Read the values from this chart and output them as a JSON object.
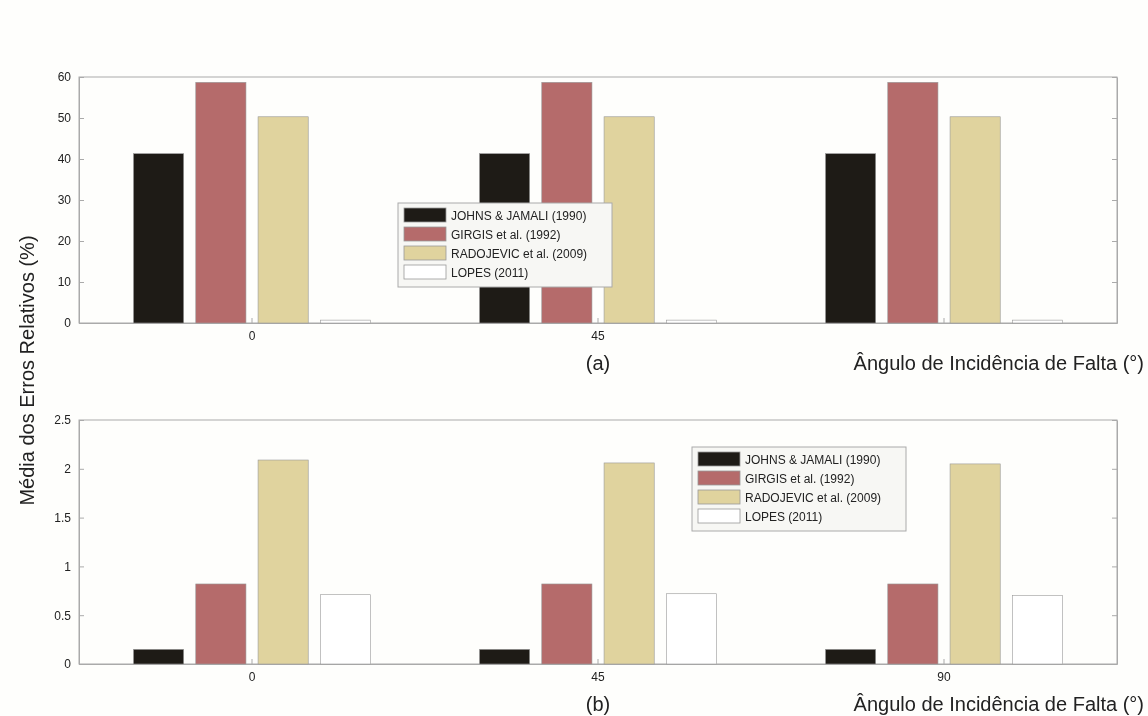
{
  "chart_data": [
    {
      "type": "bar",
      "categories": [
        "0",
        "45",
        null
      ],
      "xlabel": "Ângulo de Incidência de Falta (°)",
      "ylabel": "Média dos Erros Relativos (%)",
      "ylim": [
        0,
        60
      ],
      "yticks": [
        0,
        10,
        20,
        30,
        40,
        50,
        60
      ],
      "legend": "center",
      "annotations": [
        "(a)"
      ],
      "series": [
        {
          "name": "JOHNS & JAMALI (1990)",
          "color": "#1e1b16",
          "values": [
            41.3,
            41.3,
            41.3
          ]
        },
        {
          "name": "GIRGIS et al. (1992)",
          "color": "#b56b6b",
          "values": [
            58.7,
            58.7,
            58.7
          ]
        },
        {
          "name": "RADOJEVIC et al. (2009)",
          "color": "#e0d39e",
          "values": [
            50.3,
            50.3,
            50.3
          ]
        },
        {
          "name": "LOPES (2011)",
          "color": "#ffffff",
          "values": [
            0.7,
            0.7,
            0.7
          ]
        }
      ]
    },
    {
      "type": "bar",
      "categories": [
        "0",
        "45",
        "90"
      ],
      "xlabel": "Ângulo de Incidência de Falta (°)",
      "ylim": [
        0,
        2.5
      ],
      "yticks": [
        0,
        0.5,
        1,
        1.5,
        2,
        2.5
      ],
      "legend": "top right",
      "annotations": [
        "(b)"
      ],
      "series": [
        {
          "name": "JOHNS & JAMALI (1990)",
          "color": "#1e1b16",
          "values": [
            0.15,
            0.15,
            0.15
          ]
        },
        {
          "name": "GIRGIS et al. (1992)",
          "color": "#b56b6b",
          "values": [
            0.82,
            0.82,
            0.82
          ]
        },
        {
          "name": "RADOJEVIC et al. (2009)",
          "color": "#e0d39e",
          "values": [
            2.09,
            2.06,
            2.05
          ]
        },
        {
          "name": "LOPES (2011)",
          "color": "#ffffff",
          "values": [
            0.71,
            0.72,
            0.7
          ]
        }
      ]
    }
  ]
}
